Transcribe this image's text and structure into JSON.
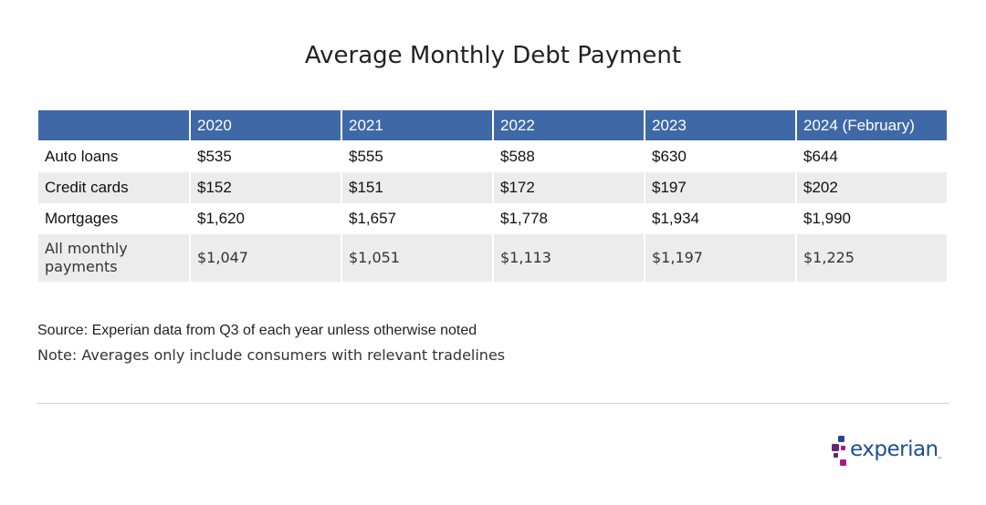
{
  "chart_data": {
    "type": "table",
    "title": "Average Monthly Debt Payment",
    "columns": [
      "",
      "2020",
      "2021",
      "2022",
      "2023",
      "2024 (February)"
    ],
    "rows": [
      {
        "label": "Auto loans",
        "values": [
          "$535",
          "$555",
          "$588",
          "$630",
          "$644"
        ]
      },
      {
        "label": "Credit cards",
        "values": [
          "$152",
          "$151",
          "$172",
          "$197",
          "$202"
        ]
      },
      {
        "label": "Mortgages",
        "values": [
          "$1,620",
          "$1,657",
          "$1,778",
          "$1,934",
          "$1,990"
        ]
      },
      {
        "label": "All monthly payments",
        "values": [
          "$1,047",
          "$1,051",
          "$1,113",
          "$1,197",
          "$1,225"
        ]
      }
    ],
    "source": "Source: Experian data from Q3 of each year unless otherwise noted",
    "note": "Note: Averages only include consumers with relevant tradelines"
  },
  "brand": {
    "logo_text": "experian",
    "logo_tm": "™"
  },
  "colors": {
    "header_bg": "#3f69a6",
    "header_text": "#ffffff",
    "row_shade": "#ececec",
    "brand_blue": "#1d4f91",
    "brand_purple": "#6d2077",
    "brand_magenta": "#af1685",
    "brand_navy": "#26478d"
  }
}
